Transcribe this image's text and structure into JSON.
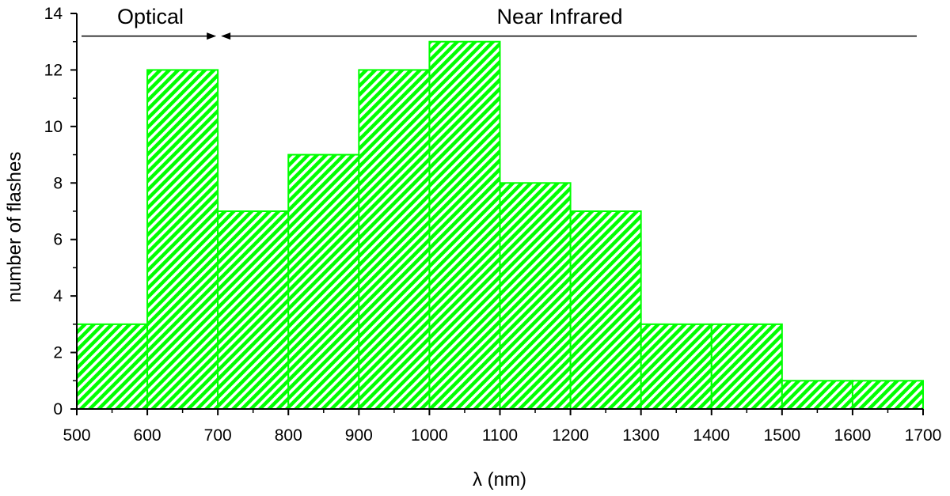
{
  "chart_data": {
    "type": "bar",
    "title": "",
    "xlabel": "λ (nm)",
    "ylabel": "number of flashes",
    "bin_edges": [
      500,
      600,
      700,
      800,
      900,
      1000,
      1100,
      1200,
      1300,
      1400,
      1500,
      1600,
      1700
    ],
    "values": [
      3,
      12,
      7,
      9,
      12,
      13,
      8,
      7,
      3,
      3,
      1,
      1
    ],
    "xlim": [
      500,
      1700
    ],
    "ylim": [
      0,
      14
    ],
    "x_ticks": [
      "500",
      "600",
      "700",
      "800",
      "900",
      "1000",
      "1100",
      "1200",
      "1300",
      "1400",
      "1500",
      "1600",
      "1700"
    ],
    "y_ticks": [
      "0",
      "2",
      "4",
      "6",
      "8",
      "10",
      "12",
      "14"
    ],
    "grid": false,
    "bar_fill": "hatched",
    "colors": {
      "bar": "#00ff00",
      "hatch": "#ffffff",
      "axis": "#000000"
    },
    "annotations": {
      "optical": {
        "label": "Optical",
        "range": [
          500,
          700
        ]
      },
      "near_infrared": {
        "label": "Near Infrared",
        "range": [
          700,
          1700
        ]
      },
      "arrow_y": 13.2
    }
  }
}
